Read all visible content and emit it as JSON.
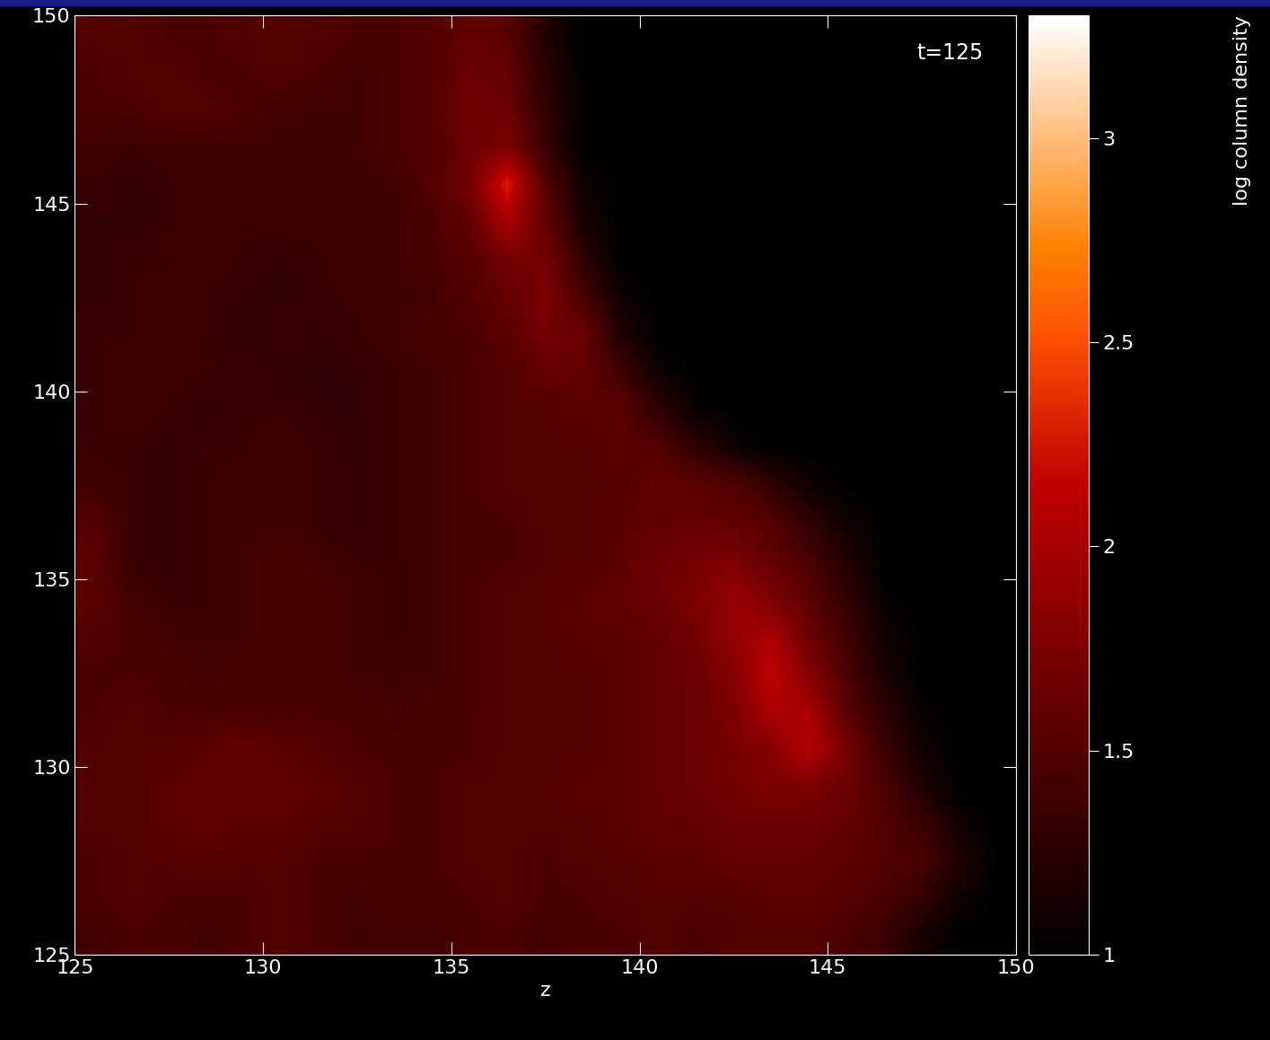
{
  "chart_data": {
    "type": "heatmap",
    "title": "t=125",
    "xlabel": "z",
    "xlim": [
      125,
      150
    ],
    "ylim": [
      125,
      150
    ],
    "xticks": [
      125,
      130,
      135,
      140,
      145,
      150
    ],
    "yticks": [
      125,
      130,
      135,
      140,
      145,
      150
    ],
    "cells": [
      [
        1.5,
        1.5,
        1.45,
        1.45,
        1.5,
        1.5,
        1.5,
        1.45,
        1.45,
        1.5,
        1.6,
        1.55,
        1.2,
        1.0,
        1.0,
        1.0,
        1.0,
        1.0,
        1.0,
        1.0,
        1.0,
        1.0,
        1.0,
        1.0,
        1.0
      ],
      [
        1.45,
        1.5,
        1.5,
        1.45,
        1.45,
        1.5,
        1.45,
        1.4,
        1.45,
        1.5,
        1.65,
        1.6,
        1.25,
        1.0,
        1.0,
        1.0,
        1.0,
        1.0,
        1.0,
        1.0,
        1.0,
        1.0,
        1.0,
        1.0,
        1.0
      ],
      [
        1.45,
        1.45,
        1.5,
        1.5,
        1.45,
        1.4,
        1.4,
        1.4,
        1.45,
        1.5,
        1.7,
        1.65,
        1.3,
        1.0,
        1.0,
        1.0,
        1.0,
        1.0,
        1.0,
        1.0,
        1.0,
        1.0,
        1.0,
        1.0,
        1.0
      ],
      [
        1.4,
        1.35,
        1.4,
        1.4,
        1.4,
        1.4,
        1.4,
        1.4,
        1.45,
        1.5,
        1.65,
        1.75,
        1.35,
        1.0,
        1.0,
        1.0,
        1.0,
        1.0,
        1.0,
        1.0,
        1.0,
        1.0,
        1.0,
        1.0,
        1.0
      ],
      [
        1.35,
        1.3,
        1.35,
        1.4,
        1.4,
        1.4,
        1.4,
        1.4,
        1.4,
        1.5,
        1.7,
        2.3,
        1.5,
        1.1,
        1.0,
        1.0,
        1.0,
        1.0,
        1.0,
        1.0,
        1.0,
        1.0,
        1.0,
        1.0,
        1.0
      ],
      [
        1.3,
        1.3,
        1.35,
        1.4,
        1.35,
        1.4,
        1.4,
        1.35,
        1.4,
        1.45,
        1.6,
        2.0,
        1.6,
        1.15,
        1.0,
        1.0,
        1.0,
        1.0,
        1.0,
        1.0,
        1.0,
        1.0,
        1.0,
        1.0,
        1.0
      ],
      [
        1.3,
        1.35,
        1.35,
        1.4,
        1.35,
        1.3,
        1.35,
        1.4,
        1.4,
        1.45,
        1.5,
        1.7,
        1.7,
        1.3,
        1.0,
        1.0,
        1.0,
        1.0,
        1.0,
        1.0,
        1.0,
        1.0,
        1.0,
        1.0,
        1.0
      ],
      [
        1.3,
        1.35,
        1.4,
        1.35,
        1.3,
        1.3,
        1.35,
        1.35,
        1.4,
        1.4,
        1.5,
        1.6,
        1.75,
        1.45,
        1.1,
        1.0,
        1.0,
        1.0,
        1.0,
        1.0,
        1.0,
        1.0,
        1.0,
        1.0,
        1.0
      ],
      [
        1.35,
        1.35,
        1.4,
        1.35,
        1.3,
        1.35,
        1.3,
        1.35,
        1.4,
        1.45,
        1.45,
        1.55,
        1.7,
        1.65,
        1.2,
        1.0,
        1.0,
        1.0,
        1.0,
        1.0,
        1.0,
        1.0,
        1.0,
        1.0,
        1.0
      ],
      [
        1.35,
        1.4,
        1.4,
        1.35,
        1.35,
        1.3,
        1.3,
        1.3,
        1.35,
        1.4,
        1.45,
        1.5,
        1.6,
        1.6,
        1.4,
        1.1,
        1.0,
        1.0,
        1.0,
        1.0,
        1.0,
        1.0,
        1.0,
        1.0,
        1.0
      ],
      [
        1.35,
        1.4,
        1.35,
        1.3,
        1.35,
        1.35,
        1.3,
        1.3,
        1.35,
        1.4,
        1.45,
        1.5,
        1.5,
        1.55,
        1.55,
        1.3,
        1.05,
        1.0,
        1.0,
        1.0,
        1.0,
        1.0,
        1.0,
        1.0,
        1.0
      ],
      [
        1.35,
        1.35,
        1.3,
        1.35,
        1.35,
        1.4,
        1.35,
        1.3,
        1.35,
        1.4,
        1.45,
        1.5,
        1.5,
        1.5,
        1.55,
        1.5,
        1.3,
        1.1,
        1.0,
        1.0,
        1.0,
        1.0,
        1.0,
        1.0,
        1.0
      ],
      [
        1.4,
        1.35,
        1.3,
        1.35,
        1.4,
        1.4,
        1.35,
        1.3,
        1.35,
        1.4,
        1.45,
        1.5,
        1.5,
        1.5,
        1.5,
        1.6,
        1.55,
        1.5,
        1.3,
        1.1,
        1.0,
        1.0,
        1.0,
        1.0,
        1.0
      ],
      [
        1.5,
        1.35,
        1.3,
        1.35,
        1.4,
        1.4,
        1.35,
        1.3,
        1.35,
        1.4,
        1.45,
        1.45,
        1.5,
        1.5,
        1.55,
        1.6,
        1.6,
        1.6,
        1.5,
        1.3,
        1.1,
        1.0,
        1.0,
        1.0,
        1.0
      ],
      [
        1.55,
        1.35,
        1.3,
        1.35,
        1.4,
        1.45,
        1.4,
        1.35,
        1.35,
        1.4,
        1.45,
        1.45,
        1.5,
        1.5,
        1.55,
        1.65,
        1.7,
        1.75,
        1.6,
        1.45,
        1.2,
        1.0,
        1.0,
        1.0,
        1.0
      ],
      [
        1.55,
        1.4,
        1.35,
        1.35,
        1.4,
        1.45,
        1.45,
        1.4,
        1.35,
        1.4,
        1.45,
        1.5,
        1.5,
        1.55,
        1.6,
        1.65,
        1.75,
        1.9,
        1.75,
        1.55,
        1.3,
        1.05,
        1.0,
        1.0,
        1.0
      ],
      [
        1.5,
        1.45,
        1.4,
        1.4,
        1.4,
        1.45,
        1.45,
        1.4,
        1.35,
        1.4,
        1.45,
        1.5,
        1.5,
        1.55,
        1.55,
        1.6,
        1.7,
        1.9,
        2.0,
        1.65,
        1.4,
        1.1,
        1.0,
        1.0,
        1.0
      ],
      [
        1.45,
        1.45,
        1.45,
        1.4,
        1.45,
        1.45,
        1.45,
        1.4,
        1.4,
        1.4,
        1.45,
        1.5,
        1.5,
        1.5,
        1.55,
        1.6,
        1.65,
        1.8,
        2.15,
        1.8,
        1.45,
        1.15,
        1.0,
        1.0,
        1.0
      ],
      [
        1.45,
        1.5,
        1.45,
        1.45,
        1.45,
        1.45,
        1.45,
        1.45,
        1.4,
        1.45,
        1.45,
        1.5,
        1.5,
        1.5,
        1.55,
        1.6,
        1.65,
        1.75,
        2.05,
        2.0,
        1.55,
        1.25,
        1.05,
        1.0,
        1.0
      ],
      [
        1.5,
        1.5,
        1.5,
        1.55,
        1.6,
        1.55,
        1.5,
        1.45,
        1.45,
        1.45,
        1.45,
        1.5,
        1.5,
        1.5,
        1.55,
        1.6,
        1.65,
        1.7,
        1.8,
        2.1,
        1.7,
        1.35,
        1.1,
        1.0,
        1.0
      ],
      [
        1.5,
        1.5,
        1.55,
        1.6,
        1.6,
        1.6,
        1.55,
        1.5,
        1.45,
        1.45,
        1.5,
        1.5,
        1.5,
        1.55,
        1.55,
        1.6,
        1.65,
        1.7,
        1.75,
        1.75,
        1.65,
        1.45,
        1.2,
        1.0,
        1.0
      ],
      [
        1.5,
        1.5,
        1.55,
        1.6,
        1.55,
        1.55,
        1.5,
        1.5,
        1.45,
        1.45,
        1.5,
        1.5,
        1.5,
        1.5,
        1.55,
        1.6,
        1.6,
        1.65,
        1.65,
        1.65,
        1.6,
        1.5,
        1.35,
        1.1,
        1.0
      ],
      [
        1.45,
        1.5,
        1.5,
        1.5,
        1.5,
        1.5,
        1.45,
        1.45,
        1.45,
        1.45,
        1.5,
        1.5,
        1.45,
        1.5,
        1.5,
        1.55,
        1.55,
        1.6,
        1.6,
        1.6,
        1.55,
        1.5,
        1.45,
        1.2,
        1.0
      ],
      [
        1.45,
        1.5,
        1.45,
        1.45,
        1.45,
        1.5,
        1.45,
        1.4,
        1.45,
        1.45,
        1.45,
        1.5,
        1.45,
        1.45,
        1.5,
        1.5,
        1.5,
        1.5,
        1.55,
        1.55,
        1.5,
        1.45,
        1.3,
        1.1,
        1.0
      ],
      [
        1.4,
        1.45,
        1.45,
        1.4,
        1.45,
        1.5,
        1.45,
        1.4,
        1.4,
        1.4,
        1.45,
        1.45,
        1.4,
        1.45,
        1.45,
        1.5,
        1.45,
        1.5,
        1.5,
        1.5,
        1.45,
        1.35,
        1.15,
        1.0,
        1.0
      ]
    ],
    "colorbar": {
      "range": [
        1,
        3.3
      ],
      "ticks": [
        1,
        1.5,
        2,
        2.5,
        3
      ],
      "label": "log column density"
    }
  }
}
